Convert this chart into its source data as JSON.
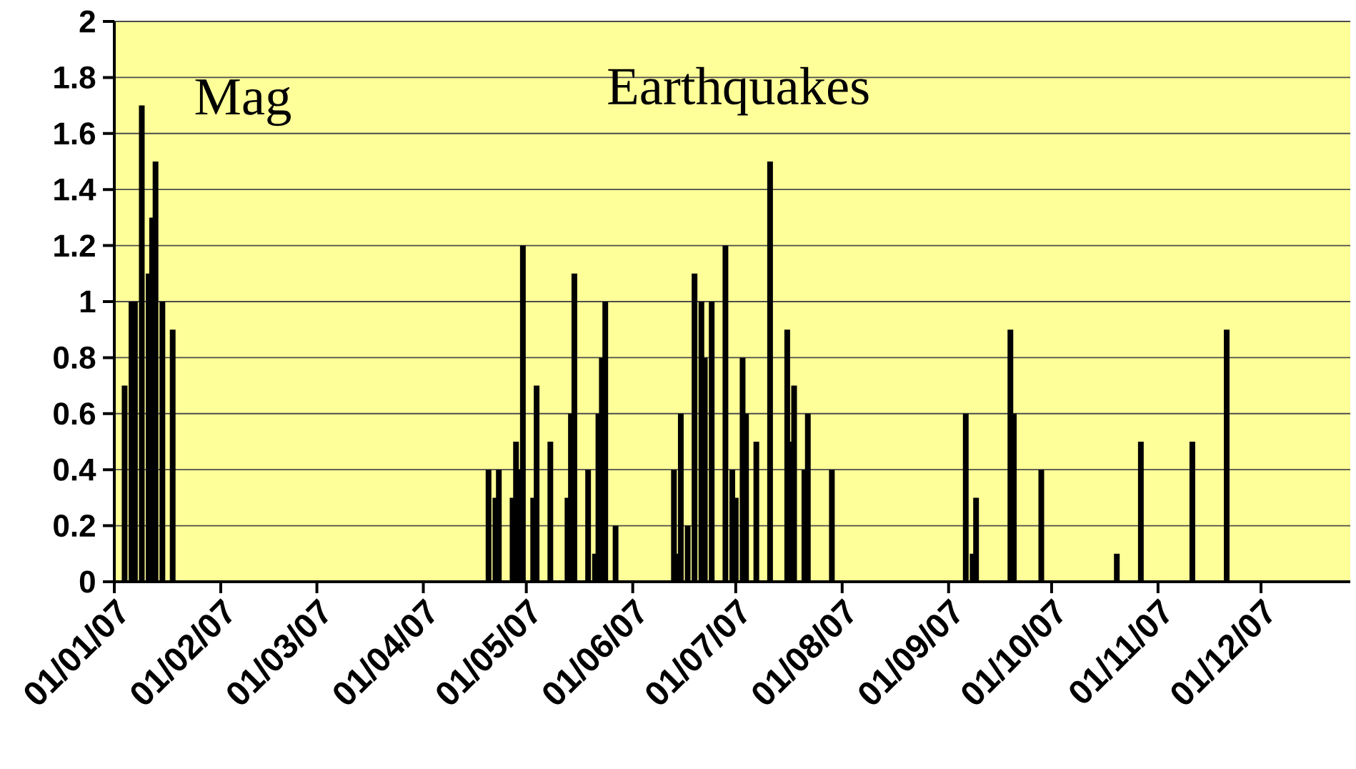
{
  "chart_data": {
    "type": "bar",
    "title": "Earthquakes",
    "ylabel": "Mag",
    "x": [
      "2007-01-04",
      "2007-01-06",
      "2007-01-07",
      "2007-01-09",
      "2007-01-11",
      "2007-01-12",
      "2007-01-13",
      "2007-01-15",
      "2007-01-18",
      "2007-04-20",
      "2007-04-22",
      "2007-04-23",
      "2007-04-27",
      "2007-04-28",
      "2007-04-29",
      "2007-04-30",
      "2007-05-03",
      "2007-05-04",
      "2007-05-08",
      "2007-05-13",
      "2007-05-14",
      "2007-05-15",
      "2007-05-19",
      "2007-05-21",
      "2007-05-22",
      "2007-05-23",
      "2007-05-24",
      "2007-05-27",
      "2007-06-13",
      "2007-06-14",
      "2007-06-15",
      "2007-06-17",
      "2007-06-19",
      "2007-06-21",
      "2007-06-22",
      "2007-06-24",
      "2007-06-28",
      "2007-06-30",
      "2007-07-01",
      "2007-07-03",
      "2007-07-04",
      "2007-07-07",
      "2007-07-11",
      "2007-07-16",
      "2007-07-17",
      "2007-07-18",
      "2007-07-21",
      "2007-07-22",
      "2007-07-29",
      "2007-09-06",
      "2007-09-08",
      "2007-09-09",
      "2007-09-19",
      "2007-09-20",
      "2007-09-28",
      "2007-10-20",
      "2007-10-27",
      "2007-11-11",
      "2007-11-21"
    ],
    "values": [
      0.7,
      1.0,
      1.0,
      1.7,
      1.1,
      1.3,
      1.5,
      1.0,
      0.9,
      0.4,
      0.3,
      0.4,
      0.3,
      0.5,
      0.4,
      1.2,
      0.3,
      0.7,
      0.5,
      0.3,
      0.6,
      1.1,
      0.4,
      0.1,
      0.6,
      0.8,
      1.0,
      0.2,
      0.4,
      0.1,
      0.6,
      0.2,
      1.1,
      1.0,
      0.8,
      1.0,
      1.2,
      0.4,
      0.3,
      0.8,
      0.6,
      0.5,
      1.5,
      0.9,
      0.5,
      0.7,
      0.4,
      0.6,
      0.4,
      0.6,
      0.1,
      0.3,
      0.9,
      0.6,
      0.4,
      0.1,
      0.5,
      0.5,
      0.9
    ],
    "color": "#000000",
    "xlim": [
      "2007-01-01",
      "2007-12-27"
    ],
    "xticks": [
      {
        "value": "2007-01-01",
        "label": "01/01/07"
      },
      {
        "value": "2007-02-01",
        "label": "01/02/07"
      },
      {
        "value": "2007-03-01",
        "label": "01/03/07"
      },
      {
        "value": "2007-04-01",
        "label": "01/04/07"
      },
      {
        "value": "2007-05-01",
        "label": "01/05/07"
      },
      {
        "value": "2007-06-01",
        "label": "01/06/07"
      },
      {
        "value": "2007-07-01",
        "label": "01/07/07"
      },
      {
        "value": "2007-08-01",
        "label": "01/08/07"
      },
      {
        "value": "2007-09-01",
        "label": "01/09/07"
      },
      {
        "value": "2007-10-01",
        "label": "01/10/07"
      },
      {
        "value": "2007-11-01",
        "label": "01/11/07"
      },
      {
        "value": "2007-12-01",
        "label": "01/12/07"
      }
    ],
    "ylim": [
      0,
      2
    ],
    "yticks": [
      0,
      0.2,
      0.4,
      0.6,
      0.8,
      1,
      1.2,
      1.4,
      1.6,
      1.8,
      2
    ],
    "grid": "y"
  }
}
